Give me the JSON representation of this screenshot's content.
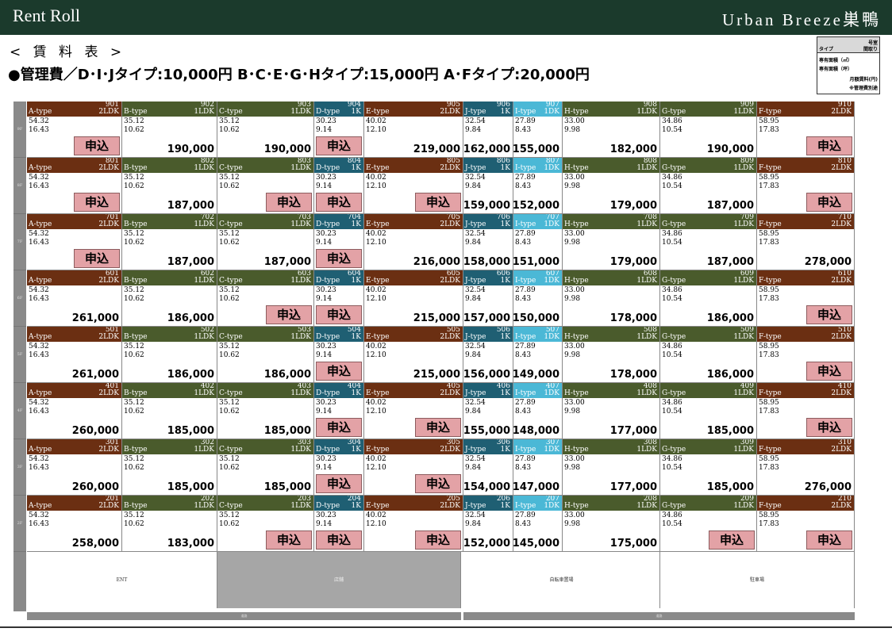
{
  "header": {
    "left_title": "Rent Roll",
    "right_title": "Urban Breeze巣鴨"
  },
  "subtitle": "< 賃 料 表 >",
  "management_fee": "●管理費／D･I･Jタイプ:10,000円  B･C･E･G･Hタイプ:15,000円  A･Fタイプ:20,000円",
  "legend": {
    "tl": "タイプ",
    "tr1": "号室",
    "tr2": "間取り",
    "r1": "専有面積（㎡）",
    "r2": "専有面積（坪）",
    "r3": "月額賃料(円)",
    "r4": "※管理費別途"
  },
  "apply_label": "申込",
  "colors": {
    "header": "#1b3a2c",
    "brown": "#6b2f12",
    "green": "#4a5b2c",
    "teal": "#1f5f73",
    "cyan": "#4bb8d6",
    "apply": "#e3a2a6"
  },
  "columns": [
    {
      "suffix": "01",
      "type": "A-type",
      "layout": "2LDK",
      "m2": "54.32",
      "tsubo": "16.43",
      "color": "brown"
    },
    {
      "suffix": "02",
      "type": "B-type",
      "layout": "1LDK",
      "m2": "35.12",
      "tsubo": "10.62",
      "color": "green"
    },
    {
      "suffix": "03",
      "type": "C-type",
      "layout": "1LDK",
      "m2": "35.12",
      "tsubo": "10.62",
      "color": "green"
    },
    {
      "suffix": "04",
      "type": "D-type",
      "layout": "1K",
      "m2": "30.23",
      "tsubo": "9.14",
      "color": "teal"
    },
    {
      "suffix": "05",
      "type": "E-type",
      "layout": "2LDK",
      "m2": "40.02",
      "tsubo": "12.10",
      "color": "brown"
    },
    {
      "suffix": "06",
      "type": "J-type",
      "layout": "1K",
      "m2": "32.54",
      "tsubo": "9.84",
      "color": "teal"
    },
    {
      "suffix": "07",
      "type": "I-type",
      "layout": "1DK",
      "m2": "27.89",
      "tsubo": "8.43",
      "color": "cyan"
    },
    {
      "suffix": "08",
      "type": "H-type",
      "layout": "1LDK",
      "m2": "33.00",
      "tsubo": "9.98",
      "color": "green"
    },
    {
      "suffix": "09",
      "type": "G-type",
      "layout": "1LDK",
      "m2": "34.86",
      "tsubo": "10.54",
      "color": "green"
    },
    {
      "suffix": "10",
      "type": "F-type",
      "layout": "2LDK",
      "m2": "58.95",
      "tsubo": "17.83",
      "color": "brown"
    }
  ],
  "floors": [
    {
      "floor": "9",
      "label": "9F",
      "rents": [
        "",
        "190,000",
        "190,000",
        "",
        "219,000",
        "162,000",
        "155,000",
        "182,000",
        "190,000",
        ""
      ],
      "applied": [
        0,
        3,
        9
      ]
    },
    {
      "floor": "8",
      "label": "8F",
      "rents": [
        "",
        "187,000",
        "",
        "",
        "",
        "159,000",
        "152,000",
        "179,000",
        "187,000",
        ""
      ],
      "applied": [
        0,
        2,
        3,
        4,
        9
      ]
    },
    {
      "floor": "7",
      "label": "7F",
      "rents": [
        "",
        "187,000",
        "187,000",
        "",
        "216,000",
        "158,000",
        "151,000",
        "179,000",
        "187,000",
        "278,000"
      ],
      "applied": [
        0,
        3
      ]
    },
    {
      "floor": "6",
      "label": "6F",
      "rents": [
        "261,000",
        "186,000",
        "",
        "",
        "215,000",
        "157,000",
        "150,000",
        "178,000",
        "186,000",
        ""
      ],
      "applied": [
        2,
        3,
        9
      ]
    },
    {
      "floor": "5",
      "label": "5F",
      "rents": [
        "261,000",
        "186,000",
        "186,000",
        "",
        "215,000",
        "156,000",
        "149,000",
        "178,000",
        "186,000",
        ""
      ],
      "applied": [
        3,
        9
      ]
    },
    {
      "floor": "4",
      "label": "4F",
      "rents": [
        "260,000",
        "185,000",
        "185,000",
        "",
        "",
        "155,000",
        "148,000",
        "177,000",
        "185,000",
        ""
      ],
      "applied": [
        3,
        4,
        9
      ]
    },
    {
      "floor": "3",
      "label": "3F",
      "rents": [
        "260,000",
        "185,000",
        "185,000",
        "",
        "",
        "154,000",
        "147,000",
        "177,000",
        "185,000",
        "276,000"
      ],
      "applied": [
        3,
        4
      ]
    },
    {
      "floor": "2",
      "label": "2F",
      "rents": [
        "258,000",
        "183,000",
        "",
        "",
        "",
        "152,000",
        "145,000",
        "175,000",
        "",
        ""
      ],
      "applied": [
        2,
        3,
        4,
        8,
        9
      ]
    }
  ],
  "ground": {
    "label": "1F",
    "ent": "ENT",
    "shop": "店舗",
    "bike": "自転車置場",
    "parking": "駐車場"
  },
  "bottom": {
    "left": "道路",
    "right": "道路"
  }
}
